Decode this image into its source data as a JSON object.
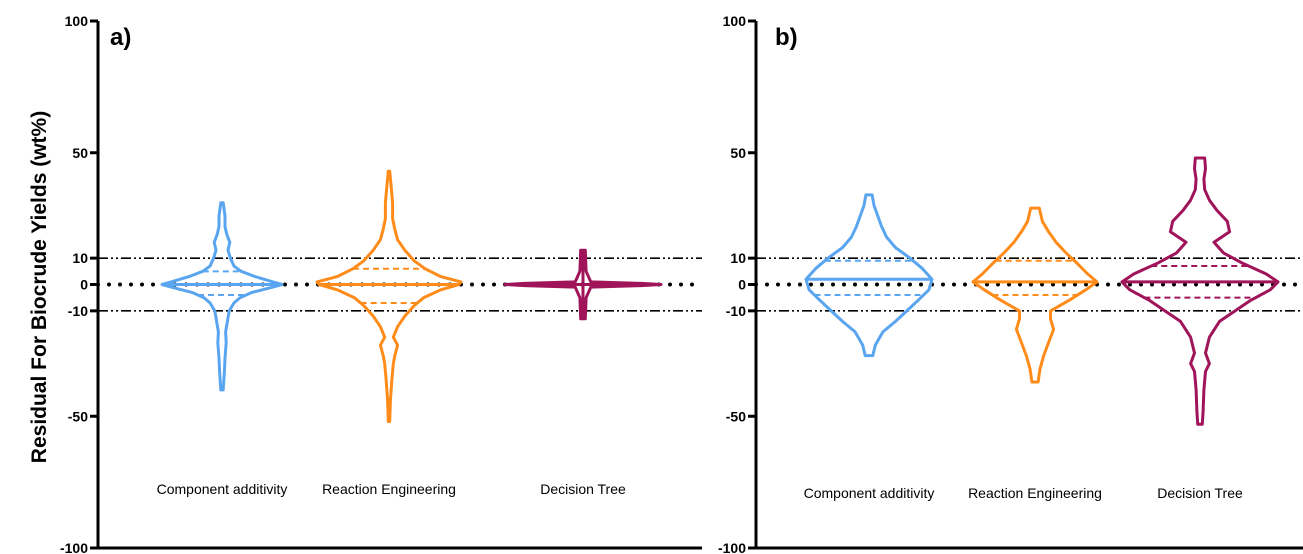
{
  "chart_data": {
    "type": "violin",
    "ylabel": "Residual For Biocrude Yields (wt%)",
    "ylim": [
      -100,
      100
    ],
    "yticks": [
      "100",
      "50",
      "10",
      "0",
      "-10",
      "-50",
      "-100"
    ],
    "reference_lines": [
      {
        "y": 10,
        "style": "dash-dot-dot"
      },
      {
        "y": 0,
        "style": "dotted"
      },
      {
        "y": -10,
        "style": "dash-dot-dot"
      }
    ],
    "colors": {
      "Component additivity": "#5aa5f0",
      "Reaction Engineering": "#ff8c1a",
      "Decision Tree": "#a0145a"
    },
    "panels": [
      {
        "label": "a)",
        "categories": [
          "Component additivity",
          "Reaction Engineering",
          "Decision Tree"
        ],
        "distributions": [
          {
            "category": "Component additivity",
            "min": -40,
            "max": 31,
            "median": 0,
            "q1": -4,
            "q3": 5,
            "profile": [
              [
                -40,
                0.02
              ],
              [
                -33,
                0.04
              ],
              [
                -28,
                0.05
              ],
              [
                -22,
                0.07
              ],
              [
                -18,
                0.06
              ],
              [
                -14,
                0.09
              ],
              [
                -10,
                0.12
              ],
              [
                -7,
                0.2
              ],
              [
                -5,
                0.3
              ],
              [
                -3,
                0.5
              ],
              [
                -1,
                0.85
              ],
              [
                0,
                1.0
              ],
              [
                1,
                0.85
              ],
              [
                3,
                0.55
              ],
              [
                5,
                0.32
              ],
              [
                7,
                0.2
              ],
              [
                10,
                0.14
              ],
              [
                13,
                0.1
              ],
              [
                16,
                0.13
              ],
              [
                19,
                0.08
              ],
              [
                22,
                0.05
              ],
              [
                26,
                0.05
              ],
              [
                31,
                0.02
              ]
            ]
          },
          {
            "category": "Reaction Engineering",
            "min": -52,
            "max": 43,
            "median": 0,
            "q1": -7,
            "q3": 6,
            "profile": [
              [
                -52,
                0.01
              ],
              [
                -44,
                0.02
              ],
              [
                -36,
                0.04
              ],
              [
                -30,
                0.06
              ],
              [
                -27,
                0.08
              ],
              [
                -23,
                0.12
              ],
              [
                -20,
                0.06
              ],
              [
                -16,
                0.12
              ],
              [
                -12,
                0.22
              ],
              [
                -8,
                0.35
              ],
              [
                -5,
                0.48
              ],
              [
                -2,
                0.72
              ],
              [
                0,
                0.97
              ],
              [
                1,
                1.0
              ],
              [
                3,
                0.72
              ],
              [
                6,
                0.5
              ],
              [
                9,
                0.35
              ],
              [
                13,
                0.22
              ],
              [
                17,
                0.12
              ],
              [
                21,
                0.08
              ],
              [
                25,
                0.05
              ],
              [
                31,
                0.05
              ],
              [
                37,
                0.03
              ],
              [
                43,
                0.01
              ]
            ]
          },
          {
            "category": "Decision Tree",
            "min": -13,
            "max": 13,
            "median": 0,
            "q1": 0,
            "q3": 0,
            "profile": [
              [
                -13,
                0.03
              ],
              [
                -5,
                0.04
              ],
              [
                -1,
                0.1
              ],
              [
                -0.4,
                0.75
              ],
              [
                0,
                1.0
              ],
              [
                0.4,
                0.75
              ],
              [
                1,
                0.1
              ],
              [
                5,
                0.04
              ],
              [
                13,
                0.03
              ]
            ]
          }
        ]
      },
      {
        "label": "b)",
        "categories": [
          "Component additivity",
          "Reaction Engineering",
          "Decision Tree"
        ],
        "distributions": [
          {
            "category": "Component additivity",
            "min": -27,
            "max": 34,
            "median": 2,
            "q1": -4,
            "q3": 9,
            "profile": [
              [
                -27,
                0.06
              ],
              [
                -23,
                0.1
              ],
              [
                -18,
                0.22
              ],
              [
                -14,
                0.42
              ],
              [
                -10,
                0.6
              ],
              [
                -6,
                0.78
              ],
              [
                -2,
                0.95
              ],
              [
                2,
                1.0
              ],
              [
                6,
                0.85
              ],
              [
                10,
                0.65
              ],
              [
                14,
                0.42
              ],
              [
                18,
                0.28
              ],
              [
                22,
                0.2
              ],
              [
                26,
                0.14
              ],
              [
                30,
                0.08
              ],
              [
                34,
                0.05
              ]
            ]
          },
          {
            "category": "Reaction Engineering",
            "min": -37,
            "max": 29,
            "median": 1,
            "q1": -4,
            "q3": 9,
            "profile": [
              [
                -37,
                0.05
              ],
              [
                -32,
                0.08
              ],
              [
                -27,
                0.14
              ],
              [
                -22,
                0.22
              ],
              [
                -17,
                0.3
              ],
              [
                -13,
                0.25
              ],
              [
                -10,
                0.25
              ],
              [
                -6,
                0.55
              ],
              [
                -2,
                0.82
              ],
              [
                1,
                1.0
              ],
              [
                4,
                0.85
              ],
              [
                8,
                0.68
              ],
              [
                12,
                0.5
              ],
              [
                16,
                0.34
              ],
              [
                20,
                0.22
              ],
              [
                24,
                0.12
              ],
              [
                29,
                0.07
              ]
            ]
          },
          {
            "category": "Decision Tree",
            "min": -53,
            "max": 48,
            "median": 1,
            "q1": -5,
            "q3": 7,
            "profile": [
              [
                -53,
                0.03
              ],
              [
                -48,
                0.04
              ],
              [
                -40,
                0.05
              ],
              [
                -33,
                0.07
              ],
              [
                -30,
                0.12
              ],
              [
                -26,
                0.07
              ],
              [
                -20,
                0.12
              ],
              [
                -14,
                0.25
              ],
              [
                -10,
                0.45
              ],
              [
                -6,
                0.65
              ],
              [
                -2,
                0.9
              ],
              [
                1,
                1.0
              ],
              [
                4,
                0.85
              ],
              [
                8,
                0.55
              ],
              [
                12,
                0.3
              ],
              [
                16,
                0.18
              ],
              [
                20,
                0.38
              ],
              [
                24,
                0.35
              ],
              [
                28,
                0.22
              ],
              [
                32,
                0.12
              ],
              [
                36,
                0.06
              ],
              [
                40,
                0.05
              ],
              [
                44,
                0.07
              ],
              [
                48,
                0.06
              ]
            ]
          }
        ]
      }
    ]
  }
}
